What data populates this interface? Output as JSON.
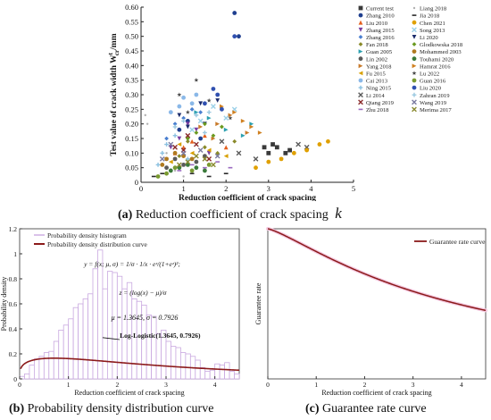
{
  "captions": {
    "a_label": "(a)",
    "a_text": "Reduction coefficient of crack spacing",
    "a_symbol": "k",
    "b_label": "(b)",
    "b_text": "Probability density distribution curve",
    "c_label": "(c)",
    "c_text": "Guarantee rate curve"
  },
  "formula": {
    "line1": "y = f(x; μ, σ) = 1/σ · 1/x · eᶻ/(1+eᶻ)²;",
    "line2": "z = (log(x) − μ)/σ",
    "line3": "μ = 1.3645,  σ = 0.7926"
  },
  "annotation_b": "Log-Logistic(1.3645, 0.7926)",
  "chart_data": [
    {
      "id": "a",
      "type": "scatter",
      "title": "",
      "xlabel": "Reduction coefficient of crack spacing",
      "ylabel": "Test value of crack width W",
      "ylabel_sup": "t",
      "ylabel_sub": "cr",
      "ylabel_unit": "/mm",
      "xlim": [
        0,
        5
      ],
      "ylim": [
        0,
        0.6
      ],
      "xticks": [
        0,
        1,
        2,
        3,
        4,
        5
      ],
      "yticks": [
        0,
        0.05,
        0.1,
        0.15,
        0.2,
        0.25,
        0.3,
        0.35,
        0.4,
        0.45,
        0.5,
        0.55,
        0.6
      ],
      "ytick_labels": [
        "0",
        "0.05",
        "0.10",
        "0.15",
        "0.20",
        "0.25",
        "0.30",
        "0.35",
        "0.40",
        "0.45",
        "0.50",
        "0.55",
        "0.60"
      ],
      "legend_position": "right",
      "series": [
        {
          "name": "Current test",
          "color": "#3a3a3a",
          "marker": "square",
          "points": [
            [
              2.9,
              0.12
            ],
            [
              3.0,
              0.1
            ],
            [
              3.2,
              0.12
            ],
            [
              3.4,
              0.1
            ],
            [
              3.1,
              0.13
            ],
            [
              3.5,
              0.11
            ]
          ]
        },
        {
          "name": "Zhang 2010",
          "color": "#1f3f8f",
          "marker": "circle",
          "points": [
            [
              2.2,
              0.58
            ],
            [
              2.3,
              0.5
            ],
            [
              1.1,
              0.21
            ],
            [
              1.4,
              0.15
            ],
            [
              0.9,
              0.18
            ]
          ]
        },
        {
          "name": "Liu 2010",
          "color": "#e45f1e",
          "marker": "triangle-up",
          "points": [
            [
              1.0,
              0.12
            ],
            [
              1.2,
              0.14
            ],
            [
              0.8,
              0.1
            ],
            [
              1.5,
              0.16
            ],
            [
              2.0,
              0.12
            ]
          ]
        },
        {
          "name": "Zhang 2015",
          "color": "#7a3fa0",
          "marker": "triangle-down",
          "points": [
            [
              0.9,
              0.15
            ],
            [
              1.1,
              0.2
            ],
            [
              1.3,
              0.18
            ],
            [
              0.7,
              0.12
            ],
            [
              1.6,
              0.1
            ]
          ]
        },
        {
          "name": "Zhang 2016",
          "color": "#4a7fd0",
          "marker": "diamond",
          "points": [
            [
              1.0,
              0.22
            ],
            [
              1.2,
              0.25
            ],
            [
              0.8,
              0.2
            ],
            [
              1.4,
              0.24
            ],
            [
              0.6,
              0.15
            ]
          ]
        },
        {
          "name": "Fan 2018",
          "color": "#8a8a2a",
          "marker": "diamond",
          "points": [
            [
              1.1,
              0.14
            ],
            [
              1.5,
              0.12
            ],
            [
              1.8,
              0.1
            ],
            [
              0.9,
              0.09
            ],
            [
              2.2,
              0.14
            ]
          ]
        },
        {
          "name": "Guan 2005",
          "color": "#2aa0b0",
          "marker": "triangle-right",
          "points": [
            [
              1.6,
              0.22
            ],
            [
              2.0,
              0.18
            ],
            [
              2.4,
              0.16
            ],
            [
              2.6,
              0.2
            ],
            [
              1.3,
              0.24
            ]
          ]
        },
        {
          "name": "Lin 2002",
          "color": "#5a5a5a",
          "marker": "circle",
          "points": [
            [
              0.8,
              0.08
            ],
            [
              1.0,
              0.06
            ],
            [
              1.3,
              0.07
            ],
            [
              0.6,
              0.05
            ],
            [
              1.5,
              0.09
            ]
          ]
        },
        {
          "name": "Yang 2018",
          "color": "#c87a2a",
          "marker": "triangle-right",
          "points": [
            [
              1.8,
              0.2
            ],
            [
              2.1,
              0.23
            ],
            [
              1.4,
              0.19
            ],
            [
              2.5,
              0.17
            ],
            [
              1.7,
              0.15
            ]
          ]
        },
        {
          "name": "Fu 2015",
          "color": "#d8a000",
          "marker": "triangle-left",
          "points": [
            [
              1.2,
              0.1
            ],
            [
              0.9,
              0.13
            ],
            [
              1.6,
              0.11
            ],
            [
              2.0,
              0.09
            ],
            [
              0.7,
              0.07
            ]
          ]
        },
        {
          "name": "Cai 2013",
          "color": "#8ab8e8",
          "marker": "circle",
          "points": [
            [
              0.9,
              0.26
            ],
            [
              1.0,
              0.29
            ],
            [
              0.7,
              0.24
            ],
            [
              1.2,
              0.27
            ],
            [
              1.3,
              0.3
            ]
          ]
        },
        {
          "name": "Ning 2015",
          "color": "#8ac0e0",
          "marker": "plus",
          "points": [
            [
              0.5,
              0.1
            ],
            [
              0.6,
              0.13
            ],
            [
              0.8,
              0.16
            ],
            [
              1.1,
              0.08
            ],
            [
              0.4,
              0.06
            ]
          ]
        },
        {
          "name": "Li 2014",
          "color": "#5a5a5a",
          "marker": "x",
          "points": [
            [
              1.9,
              0.14
            ],
            [
              2.3,
              0.1
            ],
            [
              3.7,
              0.13
            ],
            [
              3.9,
              0.12
            ],
            [
              2.7,
              0.08
            ]
          ]
        },
        {
          "name": "Qiang 2019",
          "color": "#8a2a2a",
          "marker": "x",
          "points": [
            [
              1.0,
              0.11
            ],
            [
              1.3,
              0.13
            ],
            [
              1.6,
              0.08
            ],
            [
              0.8,
              0.12
            ],
            [
              1.1,
              0.16
            ]
          ]
        },
        {
          "name": "Zhu 2018",
          "color": "#9a6ac0",
          "marker": "dash",
          "points": [
            [
              1.2,
              0.06
            ],
            [
              1.5,
              0.05
            ],
            [
              0.9,
              0.04
            ],
            [
              1.8,
              0.07
            ],
            [
              2.1,
              0.05
            ]
          ]
        },
        {
          "name": "Liang 2018",
          "color": "#b0b0b0",
          "marker": "dot",
          "points": [
            [
              0.1,
              0.23
            ],
            [
              0.15,
              0.2
            ],
            [
              0.6,
              0.1
            ],
            [
              0.8,
              0.04
            ],
            [
              1.0,
              0.02
            ]
          ]
        },
        {
          "name": "Jia 2018",
          "color": "#2a2a2a",
          "marker": "dash",
          "points": [
            [
              0.3,
              0.02
            ],
            [
              0.5,
              0.03
            ],
            [
              1.2,
              0.03
            ],
            [
              1.6,
              0.02
            ],
            [
              2.0,
              0.03
            ]
          ]
        },
        {
          "name": "Chen 2021",
          "color": "#e0a000",
          "marker": "circle",
          "points": [
            [
              3.0,
              0.07
            ],
            [
              3.3,
              0.08
            ],
            [
              3.6,
              0.1
            ],
            [
              3.9,
              0.11
            ],
            [
              4.2,
              0.13
            ],
            [
              4.4,
              0.14
            ],
            [
              2.7,
              0.05
            ]
          ]
        },
        {
          "name": "Song 2013",
          "color": "#9ad0e8",
          "marker": "x",
          "points": [
            [
              1.4,
              0.21
            ],
            [
              1.7,
              0.26
            ],
            [
              2.0,
              0.22
            ],
            [
              1.2,
              0.18
            ],
            [
              2.2,
              0.25
            ]
          ]
        },
        {
          "name": "Li 2020",
          "color": "#1a2a6a",
          "marker": "triangle-down",
          "points": [
            [
              1.1,
              0.19
            ],
            [
              1.4,
              0.27
            ],
            [
              0.9,
              0.23
            ],
            [
              1.5,
              0.2
            ],
            [
              1.8,
              0.28
            ]
          ]
        },
        {
          "name": "Glodkowska 2018",
          "color": "#6a9a20",
          "marker": "diamond",
          "points": [
            [
              1.3,
              0.17
            ],
            [
              1.5,
              0.2
            ],
            [
              1.7,
              0.16
            ],
            [
              1.1,
              0.15
            ],
            [
              1.9,
              0.19
            ]
          ]
        },
        {
          "name": "Mohammed 2003",
          "color": "#b07a20",
          "marker": "circle",
          "points": [
            [
              0.6,
              0.08
            ],
            [
              0.8,
              0.1
            ],
            [
              1.0,
              0.09
            ],
            [
              0.5,
              0.06
            ],
            [
              1.2,
              0.08
            ]
          ]
        },
        {
          "name": "Touhami 2020",
          "color": "#3a7a3a",
          "marker": "circle",
          "points": [
            [
              0.9,
              0.05
            ],
            [
              1.1,
              0.06
            ],
            [
              0.7,
              0.04
            ],
            [
              1.3,
              0.05
            ],
            [
              1.5,
              0.04
            ]
          ]
        },
        {
          "name": "Hamrat 2016",
          "color": "#d08020",
          "marker": "triangle-right",
          "points": [
            [
              2.4,
              0.21
            ],
            [
              2.6,
              0.19
            ],
            [
              2.8,
              0.17
            ],
            [
              2.2,
              0.24
            ],
            [
              1.9,
              0.26
            ]
          ]
        },
        {
          "name": "Lu 2022",
          "color": "#4a4a4a",
          "marker": "star",
          "points": [
            [
              1.3,
              0.35
            ],
            [
              0.9,
              0.3
            ],
            [
              1.6,
              0.28
            ],
            [
              1.1,
              0.24
            ],
            [
              2.1,
              0.22
            ]
          ]
        },
        {
          "name": "Guan 2016",
          "color": "#7a9a30",
          "marker": "circle",
          "points": [
            [
              0.6,
              0.03
            ],
            [
              0.8,
              0.05
            ],
            [
              1.2,
              0.04
            ],
            [
              0.4,
              0.02
            ],
            [
              1.6,
              0.06
            ]
          ]
        },
        {
          "name": "Liu 2020",
          "color": "#3050b0",
          "marker": "circle",
          "points": [
            [
              2.2,
              0.5
            ],
            [
              1.8,
              0.3
            ],
            [
              1.5,
              0.27
            ],
            [
              1.7,
              0.32
            ],
            [
              1.9,
              0.25
            ]
          ]
        },
        {
          "name": "Zahran 2019",
          "color": "#9ac8e0",
          "marker": "plus",
          "points": [
            [
              1.0,
              0.21
            ],
            [
              1.3,
              0.23
            ],
            [
              0.8,
              0.19
            ],
            [
              1.6,
              0.24
            ],
            [
              1.5,
              0.17
            ]
          ]
        },
        {
          "name": "Wang 2019",
          "color": "#7a7aa0",
          "marker": "x",
          "points": [
            [
              0.7,
              0.13
            ],
            [
              1.0,
              0.1
            ],
            [
              1.4,
              0.11
            ],
            [
              1.8,
              0.09
            ],
            [
              0.5,
              0.08
            ]
          ]
        },
        {
          "name": "Merima 2017",
          "color": "#8a8a30",
          "marker": "x",
          "points": [
            [
              1.1,
              0.07
            ],
            [
              1.3,
              0.09
            ],
            [
              0.9,
              0.06
            ],
            [
              1.5,
              0.08
            ],
            [
              1.7,
              0.06
            ]
          ]
        }
      ]
    },
    {
      "id": "b",
      "type": "bar",
      "title": "",
      "xlabel": "Reduction coefficient of crack spacing",
      "ylabel": "Probability density",
      "xlim": [
        0,
        4.5
      ],
      "ylim": [
        0,
        1.2
      ],
      "xticks": [
        0,
        1,
        2,
        3,
        4
      ],
      "yticks": [
        0,
        0.2,
        0.4,
        0.6,
        0.8,
        1.0,
        1.2
      ],
      "ytick_labels": [
        "0",
        "0.2",
        "0.4",
        "0.6",
        "0.8",
        "1",
        "1.2"
      ],
      "legend_position": "top-left",
      "bin_width": 0.1,
      "histogram": {
        "name": "Probability density histogram",
        "color": "#c9a8e0",
        "values": [
          0.02,
          0.04,
          0.11,
          0.16,
          0.18,
          0.21,
          0.22,
          0.3,
          0.39,
          0.43,
          0.48,
          0.57,
          0.6,
          0.64,
          0.68,
          0.88,
          1.03,
          0.72,
          0.86,
          0.85,
          0.82,
          0.72,
          0.77,
          0.64,
          0.62,
          0.59,
          0.51,
          0.5,
          0.36,
          0.39,
          0.3,
          0.26,
          0.25,
          0.21,
          0.2,
          0.18,
          0.15,
          0.09,
          0.06,
          0.07,
          0.12,
          0.11,
          0.13,
          0.06,
          0.04
        ]
      },
      "curve": {
        "name": "Probability density distribution curve",
        "color": "#8b1a1a",
        "distribution": "log-logistic",
        "mu": 1.3645,
        "sigma": 0.7926
      }
    },
    {
      "id": "c",
      "type": "line",
      "title": "",
      "xlabel": "Reduction coefficient of crack spacing",
      "ylabel": "Guarantee rate",
      "xlim": [
        0,
        4.5
      ],
      "ylim": [
        0,
        1
      ],
      "xticks": [
        0,
        1,
        2,
        3,
        4
      ],
      "legend_position": "top-right",
      "series": [
        {
          "name": "Guarantee rate curve",
          "color": "#8b1a1a",
          "distribution": "log-logistic",
          "mu": 1.3645,
          "sigma": 0.7926
        }
      ]
    }
  ]
}
